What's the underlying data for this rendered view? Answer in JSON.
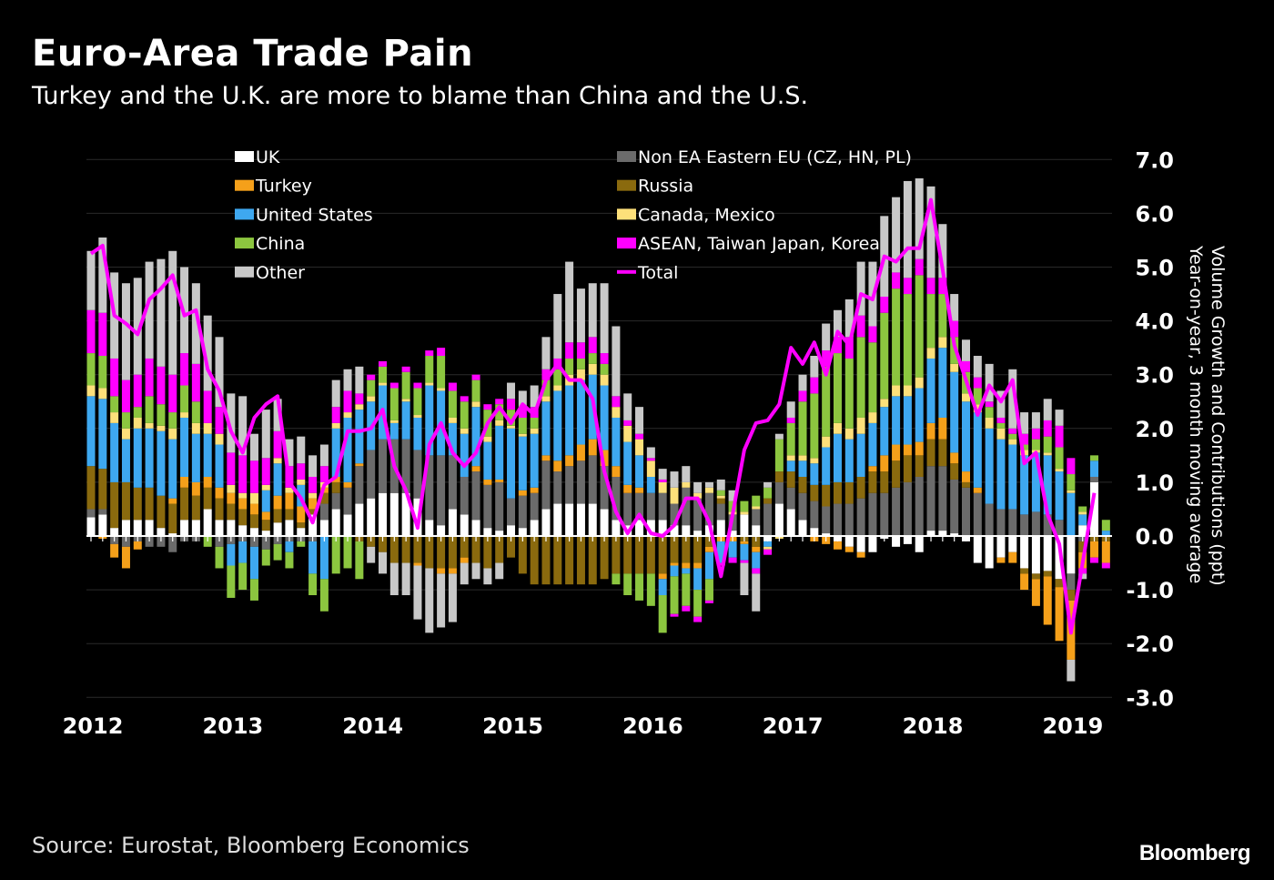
{
  "title": "Euro-Area Trade Pain",
  "subtitle": "Turkey and the U.K. are more to blame than China and the U.S.",
  "source": "Source: Eurostat, Bloomberg Economics",
  "logo": "Bloomberg",
  "chart_data": {
    "type": "bar",
    "stacked": true,
    "title": "Euro-Area Trade Pain",
    "subtitle": "Turkey and the U.K. are more to blame than China and the U.S.",
    "xlabel": "",
    "ylabel": "Volume Growth and Contributions (ppt) Year-on-year, 3 month moving average",
    "ylabel_lines": [
      "Volume Growth and Contributions (ppt)",
      "Year-on-year, 3 month moving average"
    ],
    "ylim": [
      -3,
      7
    ],
    "yticks": [
      "7.0",
      "6.0",
      "5.0",
      "4.0",
      "3.0",
      "2.0",
      "1.0",
      "0.0",
      "-1.0",
      "-2.0",
      "-3.0"
    ],
    "ytick_values": [
      7,
      6,
      5,
      4,
      3,
      2,
      1,
      0,
      -1,
      -2,
      -3
    ],
    "y_axis_side": "right",
    "xticks": [
      "2012",
      "2013",
      "2014",
      "2015",
      "2016",
      "2017",
      "2018",
      "2019"
    ],
    "x_start": "2012-01",
    "x_frequency": "monthly",
    "grid": true,
    "legend_position": "top",
    "background": "#000000",
    "series": [
      {
        "name": "UK",
        "color": "#ffffff",
        "kind": "bar",
        "values": [
          0.35,
          0.4,
          0.15,
          0.3,
          0.3,
          0.3,
          0.15,
          0.05,
          0.3,
          0.3,
          0.5,
          0.3,
          0.3,
          0.2,
          0.15,
          0.1,
          0.25,
          0.3,
          0.15,
          0.4,
          0.3,
          0.5,
          0.4,
          0.6,
          0.7,
          0.8,
          0.8,
          0.8,
          0.7,
          0.3,
          0.2,
          0.5,
          0.4,
          0.3,
          0.15,
          0.1,
          0.2,
          0.15,
          0.3,
          0.5,
          0.6,
          0.6,
          0.6,
          0.6,
          0.5,
          0.3,
          0.2,
          0.3,
          0.3,
          0.3,
          0.2,
          0.2,
          0.1,
          0.2,
          0.3,
          0.1,
          0.4,
          0.2,
          -0.1,
          0.6,
          0.5,
          0.3,
          0.15,
          0.05,
          -0.1,
          -0.2,
          -0.3,
          -0.3,
          -0.05,
          -0.2,
          -0.15,
          -0.3,
          0.1,
          0.1,
          0.05,
          -0.1,
          -0.5,
          -0.6,
          -0.4,
          -0.3,
          -0.6,
          -0.7,
          -0.65,
          -0.8,
          -0.7,
          0.2,
          1.0,
          0.0
        ]
      },
      {
        "name": "Non EA Eastern EU (CZ, HN, PL)",
        "color": "#6b6b6b",
        "kind": "bar",
        "values": [
          0.15,
          0.1,
          -0.15,
          -0.2,
          -0.1,
          -0.2,
          -0.2,
          -0.3,
          -0.1,
          -0.1,
          0,
          -0.2,
          -0.15,
          -0.1,
          -0.2,
          -0.25,
          -0.15,
          -0.1,
          -0.1,
          -0.1,
          0.3,
          0.3,
          0.5,
          0.7,
          0.9,
          1.0,
          1.0,
          1.0,
          0.9,
          1.2,
          1.3,
          1.0,
          0.7,
          0.9,
          0.8,
          0.9,
          0.5,
          0.6,
          0.5,
          0.9,
          0.6,
          0.7,
          0.8,
          0.9,
          0.8,
          0.8,
          0.6,
          0.5,
          0.5,
          0.5,
          0.4,
          0.7,
          0.6,
          0.6,
          0.3,
          0.3,
          0.0,
          0.3,
          0.6,
          0.4,
          0.4,
          0.5,
          0.5,
          0.5,
          0.6,
          0.6,
          0.7,
          0.8,
          0.8,
          0.9,
          1.0,
          1.1,
          1.2,
          1.2,
          1.0,
          0.9,
          0.8,
          0.6,
          0.5,
          0.5,
          0.4,
          0.45,
          0.4,
          0.3,
          -0.3,
          -0.1,
          0.1,
          0
        ]
      },
      {
        "name": "Russia",
        "color": "#8a6a0e",
        "kind": "bar",
        "values": [
          0.8,
          0.75,
          0.85,
          0.7,
          0.6,
          0.6,
          0.6,
          0.55,
          0.6,
          0.45,
          0.4,
          0.4,
          0.3,
          0.3,
          0.25,
          0.2,
          0.25,
          0.2,
          0.1,
          0.1,
          0.2,
          0.2,
          0.0,
          -0.1,
          -0.2,
          -0.3,
          -0.5,
          -0.5,
          -0.5,
          -0.6,
          -0.6,
          -0.6,
          -0.4,
          -0.5,
          -0.6,
          -0.5,
          -0.4,
          -0.7,
          -0.9,
          -0.9,
          -0.9,
          -0.9,
          -0.9,
          -0.9,
          -0.8,
          -0.7,
          -0.7,
          -0.7,
          -0.7,
          -0.7,
          -0.5,
          -0.5,
          -0.5,
          -0.2,
          0.1,
          0.0,
          -0.1,
          -0.2,
          0.1,
          0.2,
          0.3,
          0.3,
          0.3,
          0.4,
          0.4,
          0.4,
          0.4,
          0.4,
          0.4,
          0.5,
          0.5,
          0.4,
          0.5,
          0.5,
          0.3,
          0.1,
          0,
          0,
          0,
          0,
          -0.1,
          -0.1,
          -0.1,
          -0.15,
          -0.2,
          -0.2,
          -0.1,
          -0.1
        ]
      },
      {
        "name": "Turkey",
        "color": "#f5a01a",
        "kind": "bar",
        "values": [
          0,
          -0.05,
          -0.25,
          -0.4,
          -0.15,
          0,
          0,
          0.1,
          0.2,
          0.25,
          0.2,
          0.2,
          0.2,
          0.2,
          0.2,
          0.15,
          0.25,
          0.3,
          0.3,
          0.2,
          0.1,
          0.1,
          0.1,
          0.05,
          0,
          0,
          0,
          0,
          -0.05,
          0,
          -0.1,
          -0.1,
          -0.1,
          0.1,
          0.1,
          0.05,
          0,
          0.1,
          0.1,
          0.1,
          0.2,
          0.2,
          0.3,
          0.3,
          0.3,
          0.2,
          0.15,
          0.1,
          0,
          -0.1,
          -0.05,
          -0.1,
          -0.1,
          -0.1,
          -0.1,
          -0.1,
          -0.05,
          -0.1,
          0,
          0,
          0,
          0,
          -0.1,
          -0.15,
          -0.15,
          -0.1,
          -0.1,
          0.1,
          0.3,
          0.3,
          0.2,
          0.25,
          0.3,
          0.4,
          0.2,
          0.2,
          0.1,
          0,
          -0.1,
          -0.2,
          -0.3,
          -0.5,
          -0.9,
          -1.0,
          -1.1,
          -0.3,
          -0.3,
          -0.4
        ]
      },
      {
        "name": "United States",
        "color": "#3ea8f0",
        "kind": "bar",
        "values": [
          1.3,
          1.3,
          1.1,
          0.8,
          1.1,
          1.1,
          1.2,
          1.1,
          1.1,
          0.9,
          0.8,
          0.8,
          -0.4,
          -0.4,
          -0.6,
          0.4,
          0.6,
          -0.2,
          0.4,
          -0.6,
          -0.8,
          0.9,
          1.2,
          1.0,
          0.9,
          1.0,
          0.3,
          0.7,
          0.6,
          1.3,
          1.2,
          0.6,
          0.8,
          1.1,
          0.7,
          1.0,
          1.3,
          1.0,
          1.0,
          1.0,
          1.3,
          1.3,
          1.2,
          1.2,
          1.2,
          0.9,
          0.8,
          0.6,
          0.3,
          -0.3,
          -0.2,
          -0.1,
          -0.4,
          -0.5,
          -0.4,
          -0.3,
          -0.3,
          -0.3,
          -0.1,
          0,
          0.2,
          0.3,
          0.4,
          0.7,
          0.9,
          0.8,
          0.8,
          0.8,
          0.9,
          0.9,
          0.9,
          1.0,
          1.2,
          1.3,
          1.5,
          1.3,
          1.4,
          1.4,
          1.3,
          1.2,
          1.1,
          1.1,
          1.1,
          0.9,
          0.8,
          0.2,
          0.3,
          0.1
        ]
      },
      {
        "name": "Canada, Mexico",
        "color": "#fde07a",
        "kind": "bar",
        "values": [
          0.2,
          0.2,
          0.2,
          0.2,
          0.2,
          0.1,
          0.1,
          0.2,
          0.1,
          0.2,
          0.2,
          0.2,
          0.15,
          0.1,
          0.2,
          0.1,
          0.1,
          0.1,
          0.1,
          0.1,
          0.1,
          0.1,
          0.1,
          0.1,
          0.1,
          0.05,
          0.05,
          0.05,
          0.05,
          0.05,
          0.05,
          0.1,
          0.1,
          0.1,
          0.1,
          0.1,
          0.05,
          0.05,
          0.1,
          0.1,
          0.1,
          0.2,
          0.2,
          0.2,
          0.2,
          0.2,
          0.3,
          0.3,
          0.3,
          0.2,
          0.3,
          0.1,
          0.1,
          0.1,
          0.05,
          0.05,
          0.05,
          0.05,
          -0.05,
          -0.05,
          0.1,
          0.1,
          0.1,
          0.2,
          0.2,
          0.2,
          0.3,
          0.2,
          0.15,
          0.2,
          0.2,
          0.2,
          0.2,
          0.2,
          0.15,
          0.15,
          0.15,
          0.2,
          0.2,
          0.1,
          0.1,
          0.05,
          0.05,
          0.05,
          0.05,
          0.05,
          0.0,
          0.0
        ]
      },
      {
        "name": "China",
        "color": "#8cc63f",
        "kind": "bar",
        "values": [
          0.6,
          0.6,
          0.3,
          0.3,
          0.2,
          0.5,
          0.4,
          0.3,
          0.5,
          0.4,
          -0.2,
          -0.4,
          -0.6,
          -0.5,
          -0.4,
          -0.3,
          -0.3,
          -0.3,
          -0.1,
          -0.4,
          -0.6,
          -0.7,
          -0.6,
          -0.7,
          0.3,
          0.3,
          0.6,
          0.5,
          0.5,
          0.5,
          0.6,
          0.5,
          0.5,
          0.4,
          0.5,
          0.3,
          0.3,
          0.3,
          0.2,
          0.3,
          0.3,
          0.3,
          0.2,
          0.2,
          0.2,
          -0.2,
          -0.4,
          -0.5,
          -0.6,
          -0.7,
          -0.7,
          -0.6,
          -0.5,
          -0.4,
          0.1,
          0.2,
          0.2,
          0.2,
          0.2,
          0.6,
          0.6,
          1.0,
          1.2,
          1.3,
          1.3,
          1.3,
          1.5,
          1.3,
          1.6,
          1.8,
          1.7,
          1.9,
          1.0,
          0.8,
          0.5,
          0.4,
          0.3,
          0.2,
          0.1,
          0.1,
          0.1,
          0.2,
          0.3,
          0.4,
          0.3,
          0.1,
          0.1,
          0.2
        ]
      },
      {
        "name": "ASEAN, Taiwan Japan, Korea",
        "color": "#ff00ff",
        "kind": "bar",
        "values": [
          0.8,
          0.8,
          0.7,
          0.6,
          0.6,
          0.7,
          0.7,
          0.7,
          0.6,
          0.7,
          0.6,
          0.5,
          0.6,
          0.7,
          0.6,
          0.5,
          0.5,
          0.4,
          0.3,
          0.3,
          0.3,
          0.3,
          0.4,
          0.2,
          0.1,
          0.1,
          0.1,
          0.1,
          0.1,
          0.1,
          0.15,
          0.15,
          0.1,
          0.1,
          0.1,
          0.1,
          0.2,
          0.2,
          0.2,
          0.2,
          0.2,
          0.3,
          0.3,
          0.3,
          0.2,
          0.2,
          0.1,
          0.1,
          0.05,
          0.05,
          -0.05,
          -0.1,
          -0.1,
          -0.05,
          -0.05,
          -0.1,
          -0.05,
          -0.1,
          -0.1,
          0.0,
          0.1,
          0.2,
          0.3,
          0.3,
          0.3,
          0.4,
          0.4,
          0.3,
          0.3,
          0.3,
          0.3,
          0.3,
          0.3,
          0.3,
          0.3,
          0.2,
          0.2,
          0.1,
          0.1,
          0.1,
          0.2,
          0.2,
          0.3,
          0.4,
          0.3,
          -0.1,
          -0.1,
          -0.1
        ]
      },
      {
        "name": "Other",
        "color": "#c8c8c8",
        "kind": "bar",
        "values": [
          1.1,
          1.4,
          1.6,
          1.8,
          1.8,
          1.8,
          2.0,
          2.3,
          1.6,
          1.5,
          1.4,
          1.3,
          1.1,
          1.1,
          0.5,
          0.9,
          0.6,
          0.5,
          0.5,
          0.4,
          0.4,
          0.5,
          0.4,
          0.5,
          -0.3,
          -0.4,
          -0.6,
          -0.6,
          -1.0,
          -1.2,
          -1.0,
          -0.9,
          -0.4,
          -0.3,
          -0.3,
          -0.3,
          0.3,
          0.3,
          0.4,
          0.6,
          1.2,
          1.5,
          1.0,
          1.0,
          1.3,
          1.3,
          0.5,
          0.5,
          0.2,
          0.2,
          0.3,
          0.3,
          0.2,
          0.1,
          0.2,
          0.2,
          -0.6,
          -0.7,
          0.1,
          0.1,
          0.3,
          0.3,
          0.4,
          0.5,
          0.5,
          0.7,
          1.0,
          1.2,
          1.5,
          1.4,
          1.8,
          1.5,
          1.7,
          1.0,
          0.5,
          0.4,
          0.4,
          0.7,
          0.5,
          1.1,
          0.4,
          0.3,
          0.4,
          0.3,
          -0.4,
          -0.1,
          0.0,
          0.0
        ]
      },
      {
        "name": "Total",
        "color": "#ff00ff",
        "kind": "line",
        "values": [
          5.25,
          5.4,
          4.1,
          3.95,
          3.75,
          4.4,
          4.6,
          4.85,
          4.1,
          4.2,
          3.1,
          2.7,
          1.95,
          1.55,
          2.2,
          2.45,
          2.6,
          1.0,
          0.7,
          0.25,
          0.95,
          1.1,
          1.95,
          1.95,
          2.0,
          2.35,
          1.3,
          0.85,
          0.15,
          1.7,
          2.1,
          1.55,
          1.3,
          1.55,
          2.1,
          2.4,
          2.1,
          2.45,
          2.25,
          2.9,
          3.2,
          2.9,
          2.9,
          2.55,
          1.2,
          0.45,
          0.05,
          0.4,
          0.05,
          0.0,
          0.2,
          0.7,
          0.7,
          0.25,
          -0.75,
          0.4,
          1.6,
          2.1,
          2.15,
          2.45,
          3.5,
          3.2,
          3.6,
          3.0,
          3.8,
          3.55,
          4.5,
          4.4,
          5.2,
          5.1,
          5.35,
          5.35,
          6.25,
          4.95,
          3.55,
          2.9,
          2.25,
          2.8,
          2.5,
          2.9,
          1.35,
          1.55,
          0.4,
          -0.15,
          -1.8,
          -0.5,
          0.8,
          null
        ]
      }
    ]
  }
}
